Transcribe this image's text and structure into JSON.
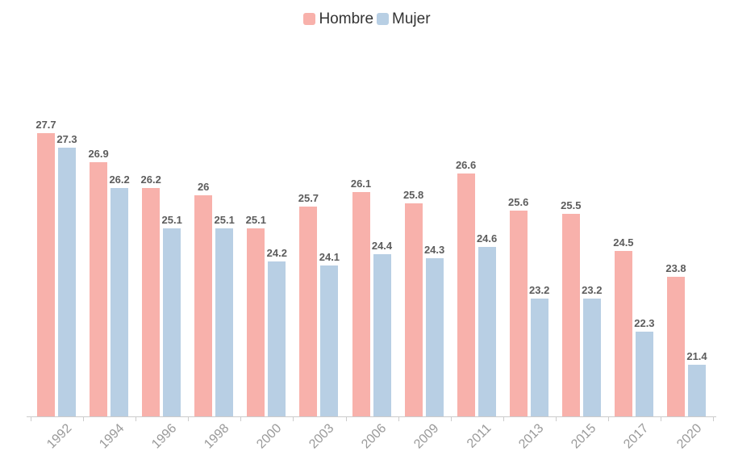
{
  "chart_data": {
    "type": "bar",
    "title": "",
    "xlabel": "",
    "ylabel": "",
    "categories": [
      "1992",
      "1994",
      "1996",
      "1998",
      "2000",
      "2003",
      "2006",
      "2009",
      "2011",
      "2013",
      "2015",
      "2017",
      "2020"
    ],
    "series": [
      {
        "name": "Hombre",
        "color": "#f8b1ab",
        "values": [
          27.7,
          26.9,
          26.2,
          26,
          25.1,
          25.7,
          26.1,
          25.8,
          26.6,
          25.6,
          25.5,
          24.5,
          23.8
        ]
      },
      {
        "name": "Mujer",
        "color": "#b8cfe4",
        "values": [
          27.3,
          26.2,
          25.1,
          25.1,
          24.2,
          24.1,
          24.4,
          24.3,
          24.6,
          23.2,
          23.2,
          22.3,
          21.4
        ]
      }
    ],
    "ylim": [
      20,
      30
    ],
    "grid": false,
    "y_axis_visible": false,
    "legend_position": "top-center",
    "value_labels": true,
    "value_label_color": "#5c5c5c",
    "x_axis": {
      "line_color": "#cccccc",
      "tick_color": "#cccccc",
      "label_color": "#9a9a9a",
      "label_rotation": -45
    }
  }
}
